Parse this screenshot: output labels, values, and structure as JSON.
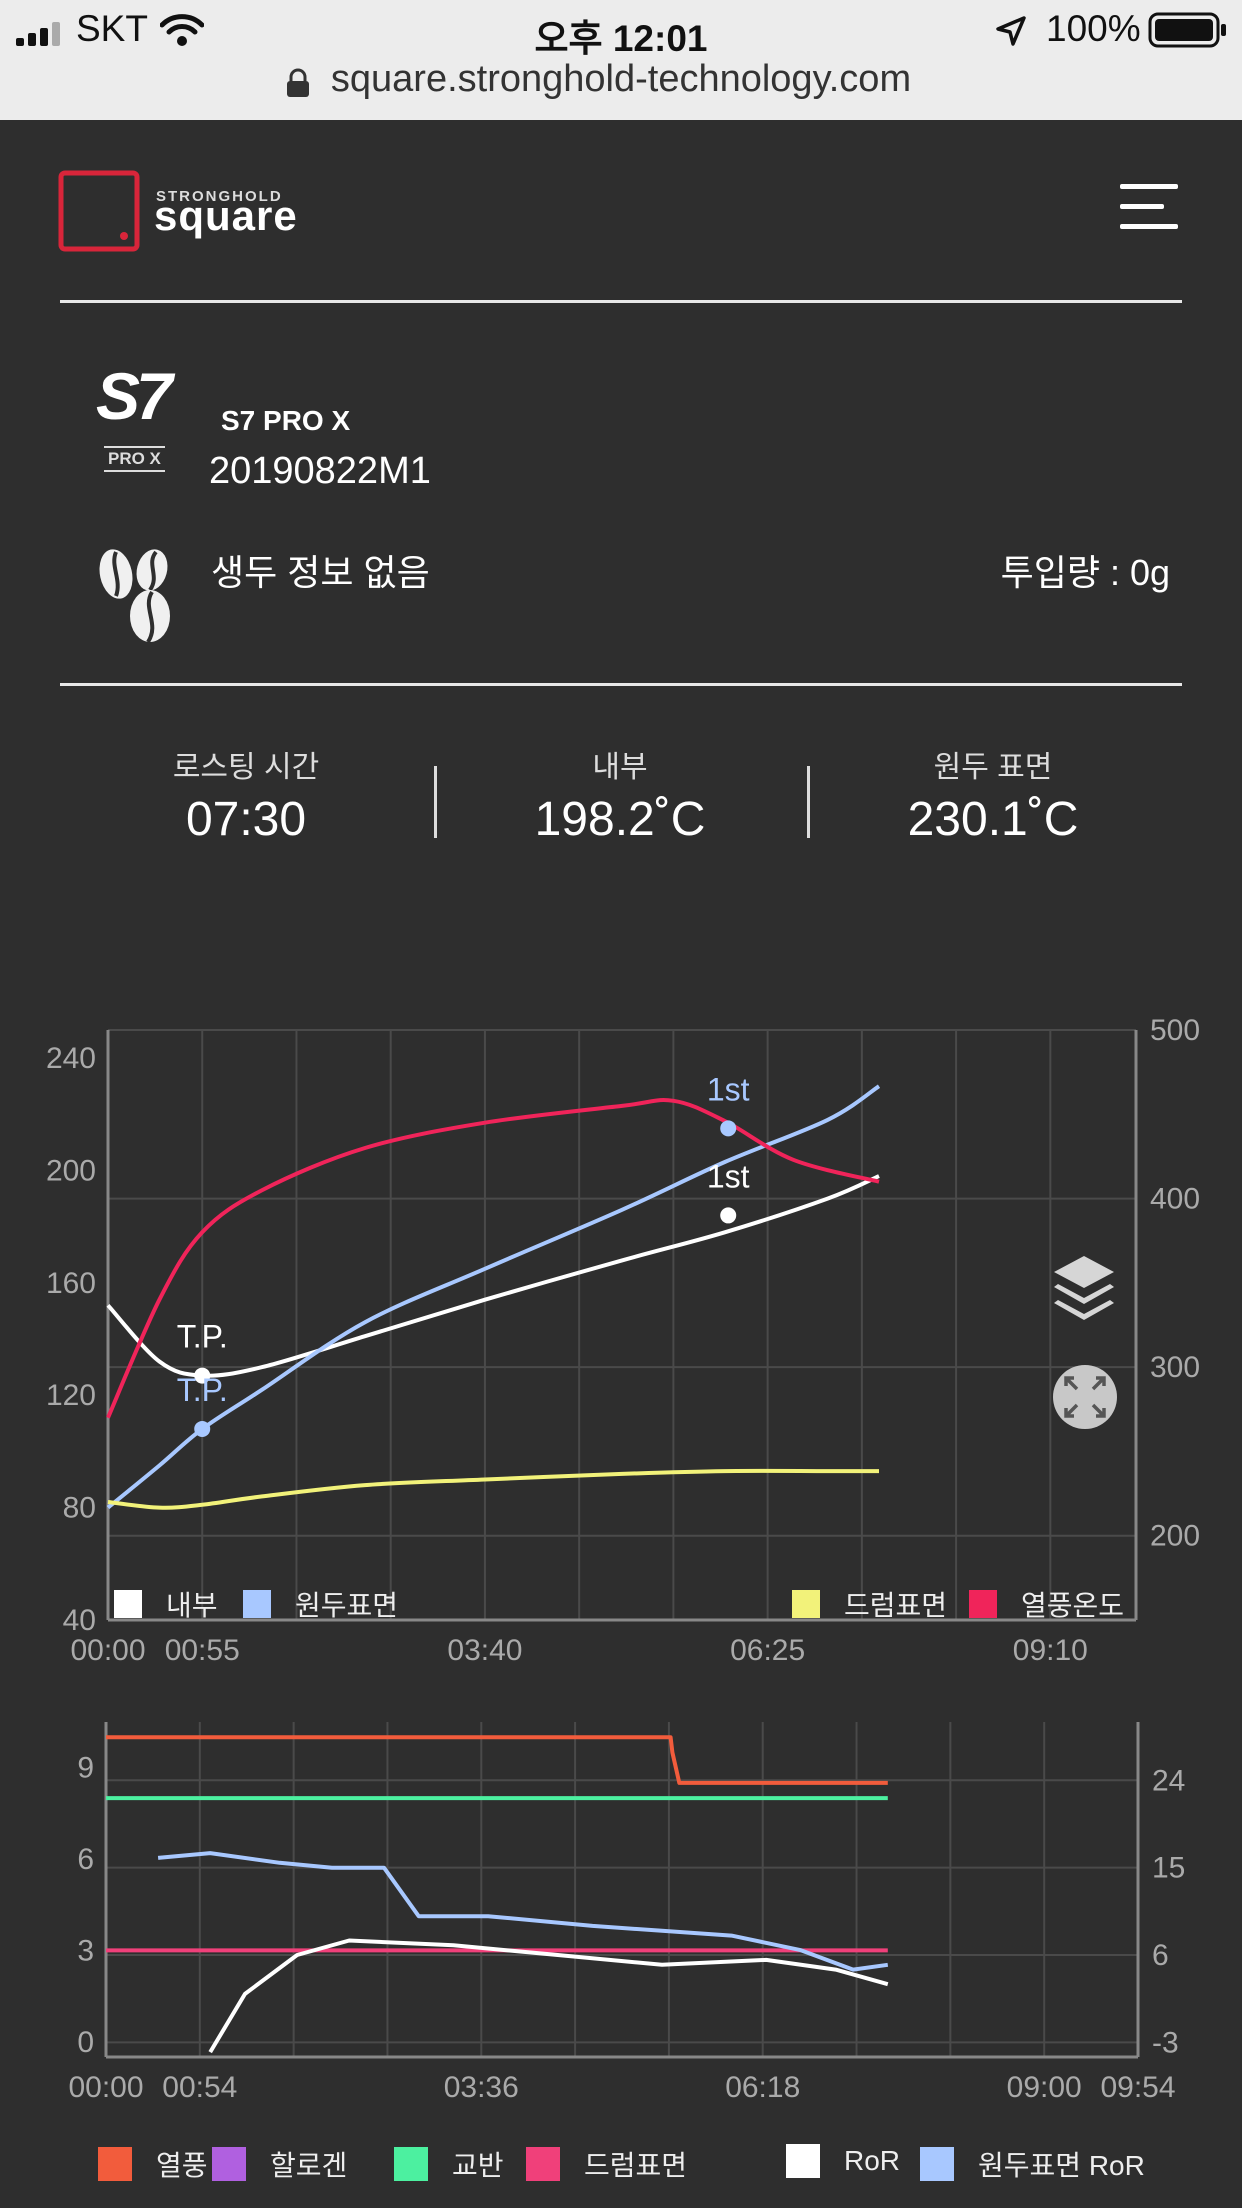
{
  "status_bar": {
    "carrier": "SKT",
    "time": "오후 12:01",
    "battery": "100%",
    "url": "square.stronghold-technology.com"
  },
  "header": {
    "brand_small": "STRONGHOLD",
    "brand_large": "square"
  },
  "device": {
    "model": "S7 PRO X",
    "logo_text": "S7",
    "logo_sub": "PRO X",
    "serial": "20190822M1"
  },
  "bean": {
    "info": "생두 정보 없음",
    "input_amount": "투입량 : 0g"
  },
  "stats": [
    {
      "label": "로스팅 시간",
      "value": "07:30"
    },
    {
      "label": "내부",
      "value": "198.2˚C"
    },
    {
      "label": "원두 표면",
      "value": "230.1˚C"
    }
  ],
  "chart_data": [
    {
      "type": "line",
      "x_unit": "mm:ss",
      "x_ticks": [
        "00:00",
        "00:55",
        "03:40",
        "06:25",
        "09:10"
      ],
      "y_left_ticks": [
        "240",
        "200",
        "160",
        "120",
        "80",
        "40"
      ],
      "y_right_ticks": [
        "500",
        "400",
        "300",
        "200"
      ],
      "ylim_left": [
        40,
        250
      ],
      "ylim_right": [
        150,
        500
      ],
      "xlim_seconds": [
        0,
        600
      ],
      "legend": [
        {
          "name": "내부",
          "color": "#ffffff"
        },
        {
          "name": "원두표면",
          "color": "#a8c8ff"
        },
        {
          "name": "드럼표면",
          "color": "#f2f27a"
        },
        {
          "name": "열풍온도",
          "color": "#f0245a"
        }
      ],
      "series": [
        {
          "name": "내부",
          "axis": "left",
          "x_seconds": [
            0,
            30,
            55,
            90,
            150,
            220,
            300,
            360,
            420,
            450
          ],
          "values": [
            152,
            132,
            127,
            130,
            141,
            154,
            168,
            178,
            190,
            198
          ]
        },
        {
          "name": "원두표면",
          "axis": "left",
          "x_seconds": [
            0,
            30,
            55,
            90,
            150,
            220,
            300,
            360,
            420,
            450
          ],
          "values": [
            80,
            95,
            108,
            122,
            146,
            165,
            186,
            203,
            218,
            230
          ]
        },
        {
          "name": "드럼표면",
          "axis": "left",
          "x_seconds": [
            0,
            30,
            55,
            90,
            150,
            220,
            300,
            360,
            420,
            450
          ],
          "values": [
            82,
            80,
            81,
            84,
            88,
            90,
            92,
            93,
            93,
            93
          ]
        },
        {
          "name": "열풍온도",
          "axis": "right",
          "x_seconds": [
            0,
            30,
            55,
            90,
            150,
            220,
            300,
            330,
            360,
            400,
            450
          ],
          "values": [
            270,
            340,
            380,
            405,
            430,
            445,
            455,
            458,
            446,
            423,
            410
          ]
        }
      ],
      "annotations": [
        {
          "label": "T.P.",
          "x_seconds": 55,
          "value": 127,
          "color": "#ffffff",
          "series": "내부"
        },
        {
          "label": "T.P.",
          "x_seconds": 55,
          "value": 108,
          "color": "#a8c8ff",
          "series": "원두표면"
        },
        {
          "label": "1st",
          "x_seconds": 362,
          "value": 184,
          "color": "#ffffff",
          "series": "내부"
        },
        {
          "label": "1st",
          "x_seconds": 362,
          "value": 215,
          "color": "#a8c8ff",
          "series": "원두표면"
        }
      ]
    },
    {
      "type": "line",
      "x_unit": "mm:ss",
      "x_ticks": [
        "00:00",
        "00:54",
        "03:36",
        "06:18",
        "09:00",
        "09:54"
      ],
      "y_left_ticks": [
        "9",
        "6",
        "3",
        "0"
      ],
      "y_right_ticks": [
        "24",
        "15",
        "6",
        "-3"
      ],
      "ylim_left": [
        -0.5,
        10.5
      ],
      "ylim_right": [
        -4.5,
        30
      ],
      "xlim_seconds": [
        0,
        594
      ],
      "legend": [
        {
          "name": "열풍",
          "color": "#f25c3c"
        },
        {
          "name": "할로겐",
          "color": "#b060e0"
        },
        {
          "name": "교반",
          "color": "#4cf0a0"
        },
        {
          "name": "드럼표면",
          "color": "#f0407a"
        },
        {
          "name": "RoR",
          "color": "#ffffff"
        },
        {
          "name": "원두표면 RoR",
          "color": "#a8c8ff"
        }
      ],
      "series": [
        {
          "name": "열풍",
          "axis": "left",
          "x_seconds": [
            0,
            325,
            326,
            330,
            450
          ],
          "values": [
            10,
            10,
            9.5,
            8.5,
            8.5
          ]
        },
        {
          "name": "교반",
          "axis": "left",
          "x_seconds": [
            0,
            450
          ],
          "values": [
            8,
            8
          ]
        },
        {
          "name": "드럼표면",
          "axis": "left",
          "x_seconds": [
            0,
            450
          ],
          "values": [
            3,
            3
          ]
        },
        {
          "name": "RoR",
          "axis": "right",
          "x_seconds": [
            60,
            80,
            110,
            140,
            200,
            260,
            320,
            380,
            420,
            450
          ],
          "values": [
            -4,
            2,
            6,
            7.5,
            7,
            6,
            5,
            5.5,
            4.5,
            3
          ]
        },
        {
          "name": "원두표면 RoR",
          "axis": "right",
          "x_seconds": [
            30,
            60,
            100,
            130,
            160,
            180,
            220,
            280,
            320,
            360,
            400,
            430,
            450
          ],
          "values": [
            16,
            16.5,
            15.5,
            15,
            15,
            10,
            10,
            9,
            8.5,
            8,
            6.5,
            4.5,
            5
          ]
        }
      ]
    }
  ]
}
